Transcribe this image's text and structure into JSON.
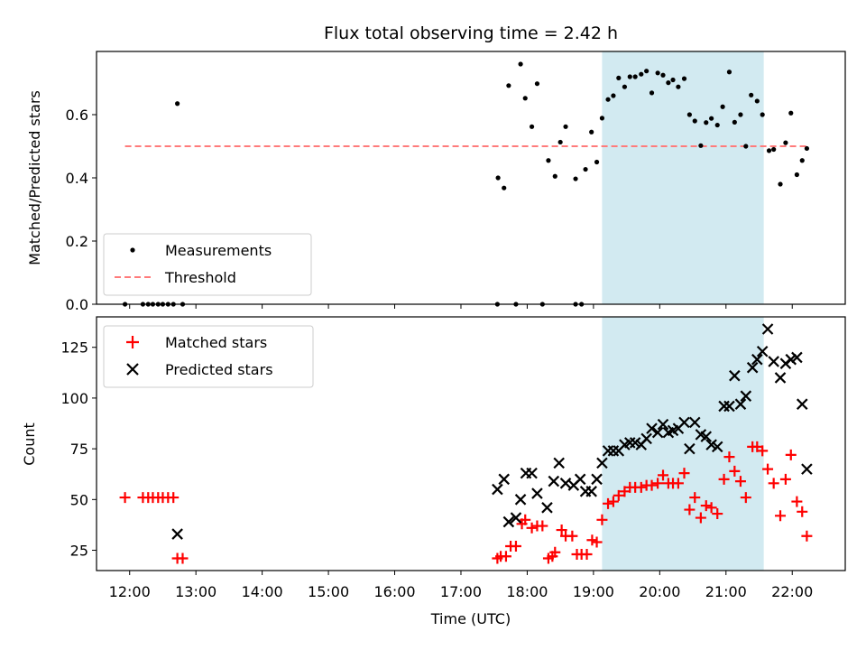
{
  "figure": {
    "title": "Flux total observing time = 2.42 h"
  },
  "chart_data": [
    {
      "type": "scatter",
      "panel": "top",
      "ylabel": "Matched/Predicted stars",
      "ylim": [
        0,
        0.8
      ],
      "yticks": [
        0.0,
        0.2,
        0.4,
        0.6
      ],
      "ytick_labels": [
        "0.0",
        "0.2",
        "0.4",
        "0.6"
      ],
      "xlim": [
        11.5,
        22.8
      ],
      "shaded_region": {
        "x_start": 19.13,
        "x_end": 21.57,
        "color": "#add8e6"
      },
      "legend": {
        "position": "lower-left",
        "entries": [
          "Measurements",
          "Threshold"
        ]
      },
      "series": [
        {
          "name": "Measurements",
          "marker": "dot",
          "color": "#000000",
          "points": [
            [
              11.93,
              0.0
            ],
            [
              12.2,
              0.0
            ],
            [
              12.28,
              0.0
            ],
            [
              12.35,
              0.0
            ],
            [
              12.43,
              0.0
            ],
            [
              12.5,
              0.0
            ],
            [
              12.58,
              0.0
            ],
            [
              12.66,
              0.0
            ],
            [
              12.72,
              0.635
            ],
            [
              12.8,
              0.0
            ],
            [
              17.55,
              0.0
            ],
            [
              17.56,
              0.4
            ],
            [
              17.65,
              0.368
            ],
            [
              17.72,
              0.692
            ],
            [
              17.83,
              0.0
            ],
            [
              17.9,
              0.76
            ],
            [
              17.97,
              0.652
            ],
            [
              18.07,
              0.562
            ],
            [
              18.15,
              0.698
            ],
            [
              18.23,
              0.0
            ],
            [
              18.32,
              0.455
            ],
            [
              18.42,
              0.405
            ],
            [
              18.5,
              0.513
            ],
            [
              18.58,
              0.562
            ],
            [
              18.73,
              0.397
            ],
            [
              18.73,
              0.0
            ],
            [
              18.82,
              0.0
            ],
            [
              18.88,
              0.427
            ],
            [
              18.97,
              0.545
            ],
            [
              19.05,
              0.45
            ],
            [
              19.13,
              0.589
            ],
            [
              19.22,
              0.648
            ],
            [
              19.3,
              0.66
            ],
            [
              19.38,
              0.716
            ],
            [
              19.47,
              0.688
            ],
            [
              19.55,
              0.72
            ],
            [
              19.63,
              0.72
            ],
            [
              19.72,
              0.728
            ],
            [
              19.8,
              0.738
            ],
            [
              19.88,
              0.669
            ],
            [
              19.97,
              0.732
            ],
            [
              20.05,
              0.725
            ],
            [
              20.13,
              0.701
            ],
            [
              20.2,
              0.71
            ],
            [
              20.28,
              0.688
            ],
            [
              20.37,
              0.714
            ],
            [
              20.45,
              0.6
            ],
            [
              20.53,
              0.58
            ],
            [
              20.62,
              0.502
            ],
            [
              20.7,
              0.575
            ],
            [
              20.78,
              0.588
            ],
            [
              20.87,
              0.567
            ],
            [
              20.95,
              0.625
            ],
            [
              21.05,
              0.735
            ],
            [
              21.13,
              0.576
            ],
            [
              21.22,
              0.6
            ],
            [
              21.3,
              0.5
            ],
            [
              21.38,
              0.662
            ],
            [
              21.47,
              0.643
            ],
            [
              21.55,
              0.6
            ],
            [
              21.65,
              0.486
            ],
            [
              21.72,
              0.49
            ],
            [
              21.82,
              0.38
            ],
            [
              21.9,
              0.511
            ],
            [
              21.98,
              0.605
            ],
            [
              22.07,
              0.41
            ],
            [
              22.15,
              0.455
            ],
            [
              22.22,
              0.493
            ]
          ]
        }
      ],
      "threshold": {
        "name": "Threshold",
        "y": 0.5,
        "x_start": 11.93,
        "x_end": 22.22,
        "color": "#ff7b7b",
        "style": "dashed"
      }
    },
    {
      "type": "scatter",
      "panel": "bottom",
      "xlabel": "Time (UTC)",
      "ylabel": "Count",
      "ylim": [
        15,
        140
      ],
      "yticks": [
        25,
        50,
        75,
        100,
        125
      ],
      "ytick_labels": [
        "25",
        "50",
        "75",
        "100",
        "125"
      ],
      "xlim": [
        11.5,
        22.8
      ],
      "xticks": [
        12,
        13,
        14,
        15,
        16,
        17,
        18,
        19,
        20,
        21,
        22
      ],
      "xtick_labels": [
        "12:00",
        "13:00",
        "14:00",
        "15:00",
        "16:00",
        "17:00",
        "18:00",
        "19:00",
        "20:00",
        "21:00",
        "22:00"
      ],
      "shaded_region": {
        "x_start": 19.13,
        "x_end": 21.57,
        "color": "#add8e6"
      },
      "legend": {
        "position": "top-left",
        "entries": [
          "Matched stars",
          "Predicted stars"
        ]
      },
      "series": [
        {
          "name": "Matched stars",
          "marker": "plus",
          "color": "#ff0000",
          "points": [
            [
              11.93,
              51
            ],
            [
              12.2,
              51
            ],
            [
              12.28,
              51
            ],
            [
              12.35,
              51
            ],
            [
              12.43,
              51
            ],
            [
              12.5,
              51
            ],
            [
              12.58,
              51
            ],
            [
              12.66,
              51
            ],
            [
              12.72,
              21
            ],
            [
              12.8,
              21
            ],
            [
              17.55,
              21
            ],
            [
              17.6,
              22
            ],
            [
              17.68,
              22
            ],
            [
              17.75,
              27
            ],
            [
              17.83,
              27
            ],
            [
              17.92,
              38
            ],
            [
              17.97,
              40
            ],
            [
              18.07,
              36
            ],
            [
              18.15,
              37
            ],
            [
              18.23,
              37
            ],
            [
              18.32,
              21
            ],
            [
              18.38,
              22
            ],
            [
              18.42,
              24
            ],
            [
              18.52,
              35
            ],
            [
              18.58,
              32
            ],
            [
              18.68,
              32
            ],
            [
              18.75,
              23
            ],
            [
              18.82,
              23
            ],
            [
              18.9,
              23
            ],
            [
              18.98,
              30
            ],
            [
              19.05,
              29
            ],
            [
              19.13,
              40
            ],
            [
              19.22,
              48
            ],
            [
              19.3,
              49
            ],
            [
              19.38,
              52
            ],
            [
              19.47,
              54
            ],
            [
              19.55,
              56
            ],
            [
              19.63,
              56
            ],
            [
              19.72,
              56
            ],
            [
              19.8,
              57
            ],
            [
              19.88,
              57
            ],
            [
              19.97,
              58
            ],
            [
              20.05,
              62
            ],
            [
              20.13,
              58
            ],
            [
              20.2,
              58
            ],
            [
              20.28,
              58
            ],
            [
              20.37,
              63
            ],
            [
              20.45,
              45
            ],
            [
              20.53,
              51
            ],
            [
              20.62,
              41
            ],
            [
              20.7,
              47
            ],
            [
              20.78,
              46
            ],
            [
              20.87,
              43
            ],
            [
              20.97,
              60
            ],
            [
              21.05,
              71
            ],
            [
              21.13,
              64
            ],
            [
              21.22,
              59
            ],
            [
              21.3,
              51
            ],
            [
              21.4,
              76
            ],
            [
              21.47,
              76
            ],
            [
              21.55,
              74
            ],
            [
              21.63,
              65
            ],
            [
              21.72,
              58
            ],
            [
              21.82,
              42
            ],
            [
              21.9,
              60
            ],
            [
              21.98,
              72
            ],
            [
              22.07,
              49
            ],
            [
              22.15,
              44
            ],
            [
              22.22,
              32
            ]
          ]
        },
        {
          "name": "Predicted stars",
          "marker": "x",
          "color": "#000000",
          "points": [
            [
              12.72,
              33
            ],
            [
              17.55,
              55
            ],
            [
              17.65,
              60
            ],
            [
              17.72,
              39
            ],
            [
              17.83,
              41
            ],
            [
              17.9,
              50
            ],
            [
              17.98,
              63
            ],
            [
              18.07,
              63
            ],
            [
              18.15,
              53
            ],
            [
              18.3,
              46
            ],
            [
              18.4,
              59
            ],
            [
              18.48,
              68
            ],
            [
              18.58,
              58
            ],
            [
              18.7,
              57
            ],
            [
              18.8,
              60
            ],
            [
              18.88,
              54
            ],
            [
              18.97,
              54
            ],
            [
              19.05,
              60
            ],
            [
              19.13,
              68
            ],
            [
              19.22,
              74
            ],
            [
              19.3,
              74
            ],
            [
              19.38,
              74
            ],
            [
              19.47,
              77
            ],
            [
              19.55,
              78
            ],
            [
              19.63,
              78
            ],
            [
              19.72,
              77
            ],
            [
              19.8,
              80
            ],
            [
              19.88,
              85
            ],
            [
              19.97,
              83
            ],
            [
              20.05,
              87
            ],
            [
              20.13,
              83
            ],
            [
              20.2,
              84
            ],
            [
              20.28,
              85
            ],
            [
              20.37,
              88
            ],
            [
              20.45,
              75
            ],
            [
              20.53,
              88
            ],
            [
              20.62,
              82
            ],
            [
              20.7,
              81
            ],
            [
              20.78,
              77
            ],
            [
              20.87,
              76
            ],
            [
              20.97,
              96
            ],
            [
              21.05,
              96
            ],
            [
              21.13,
              111
            ],
            [
              21.22,
              97
            ],
            [
              21.3,
              101
            ],
            [
              21.4,
              115
            ],
            [
              21.47,
              119
            ],
            [
              21.55,
              123
            ],
            [
              21.63,
              134
            ],
            [
              21.72,
              118
            ],
            [
              21.82,
              110
            ],
            [
              21.9,
              117
            ],
            [
              21.98,
              119
            ],
            [
              22.07,
              120
            ],
            [
              22.15,
              97
            ],
            [
              22.22,
              65
            ]
          ]
        }
      ]
    }
  ]
}
